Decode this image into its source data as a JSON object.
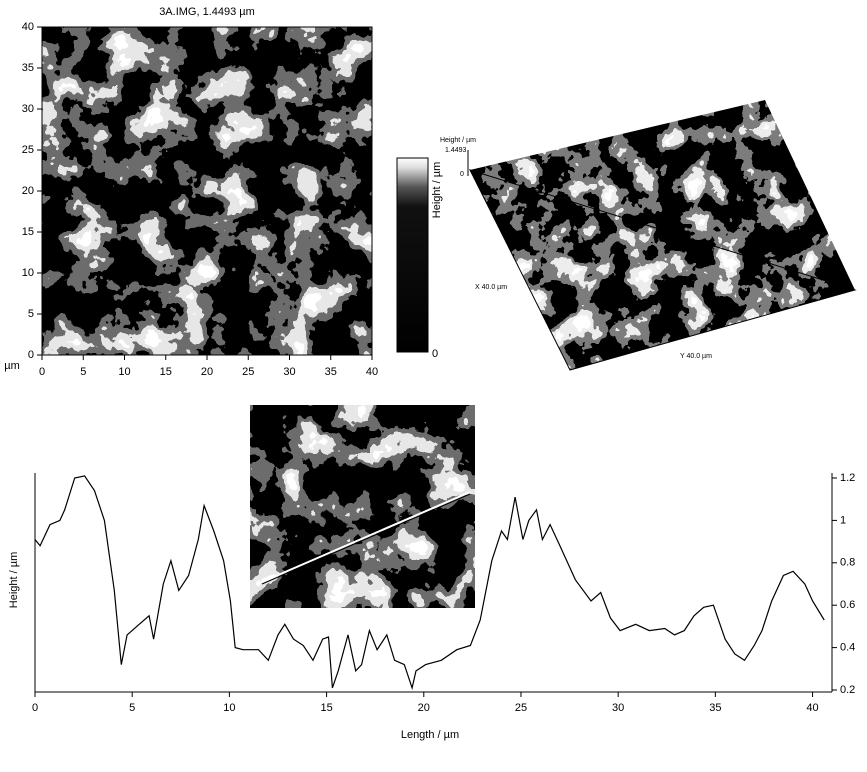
{
  "image": {
    "title": "3A.IMG, 1.4493 µm",
    "unit": "µm",
    "xlim": [
      0,
      40
    ],
    "ylim": [
      0,
      40
    ],
    "xticks": [
      0,
      5,
      10,
      15,
      20,
      25,
      30,
      35,
      40
    ],
    "yticks": [
      0,
      5,
      10,
      15,
      20,
      25,
      30,
      35,
      40
    ]
  },
  "colorbar": {
    "label": "Height / µm",
    "min_label": "0"
  },
  "view3d": {
    "z_label": "Height / µm",
    "z_max": "1.4493",
    "z_min": "0",
    "x_label": "X 40.0 µm",
    "y_label": "Y 40.0 µm"
  },
  "chart_data": {
    "type": "line",
    "xlabel": "Length / µm",
    "ylabel": "Height / µm",
    "color": "#000000",
    "x": [
      0,
      0.26,
      0.77,
      1.28,
      1.53,
      2.04,
      2.55,
      3.06,
      3.57,
      4.08,
      4.44,
      4.74,
      5.36,
      5.87,
      6.1,
      6.6,
      6.99,
      7.4,
      7.9,
      8.4,
      8.7,
      9.2,
      9.7,
      10.05,
      10.3,
      10.7,
      11.5,
      12.0,
      12.5,
      12.85,
      13.3,
      13.8,
      14.3,
      14.8,
      15.1,
      15.3,
      15.6,
      16.1,
      16.5,
      16.8,
      17.2,
      17.6,
      18.1,
      18.5,
      19.0,
      19.4,
      19.6,
      20.1,
      20.9,
      21.7,
      22.4,
      22.9,
      23.5,
      24.0,
      24.3,
      24.7,
      25.1,
      25.4,
      25.8,
      26.1,
      26.5,
      27.0,
      27.8,
      28.6,
      29.1,
      29.6,
      30.1,
      30.9,
      31.6,
      32.4,
      32.9,
      33.4,
      33.9,
      34.4,
      34.9,
      35.5,
      36.0,
      36.5,
      37.0,
      37.4,
      37.9,
      38.5,
      39.0,
      39.6,
      40.0,
      40.6
    ],
    "values": [
      0.91,
      0.88,
      0.98,
      1.0,
      1.05,
      1.2,
      1.21,
      1.14,
      1.0,
      0.67,
      0.32,
      0.46,
      0.51,
      0.55,
      0.44,
      0.7,
      0.81,
      0.67,
      0.74,
      0.91,
      1.07,
      0.95,
      0.81,
      0.62,
      0.4,
      0.39,
      0.39,
      0.34,
      0.46,
      0.51,
      0.44,
      0.41,
      0.34,
      0.44,
      0.45,
      0.21,
      0.29,
      0.46,
      0.29,
      0.32,
      0.48,
      0.39,
      0.46,
      0.34,
      0.32,
      0.21,
      0.29,
      0.32,
      0.34,
      0.39,
      0.41,
      0.53,
      0.81,
      0.95,
      0.91,
      1.11,
      0.91,
      1.0,
      1.05,
      0.91,
      0.98,
      0.88,
      0.72,
      0.62,
      0.66,
      0.54,
      0.48,
      0.51,
      0.48,
      0.49,
      0.46,
      0.48,
      0.55,
      0.59,
      0.6,
      0.44,
      0.37,
      0.34,
      0.41,
      0.48,
      0.62,
      0.74,
      0.76,
      0.7,
      0.62,
      0.53
    ],
    "xlim": [
      0,
      41
    ],
    "ylim": [
      0.2,
      1.2
    ],
    "xticks": [
      0,
      5,
      10,
      15,
      20,
      25,
      30,
      35,
      40
    ],
    "yticks": [
      0.2,
      0.4,
      0.6,
      0.8,
      1,
      1.2
    ]
  }
}
